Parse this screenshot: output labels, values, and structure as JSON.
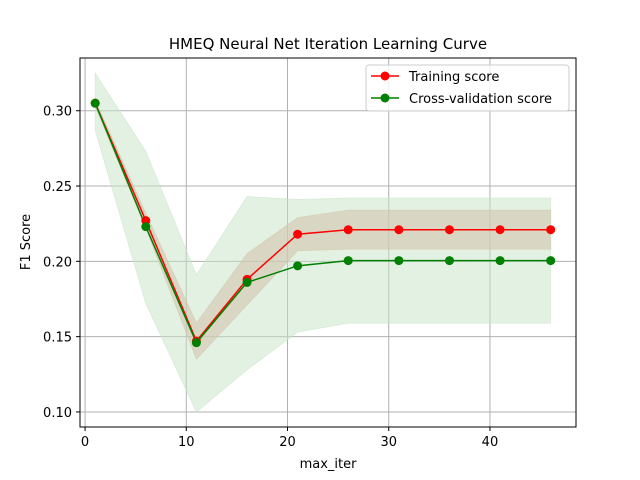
{
  "chart_data": {
    "type": "line",
    "title": "HMEQ Neural Net Iteration Learning Curve",
    "xlabel": "max_iter",
    "ylabel": "F1 Score",
    "xlim": [
      -0.5,
      48.5
    ],
    "ylim": [
      0.09,
      0.335
    ],
    "xticks": [
      0,
      10,
      20,
      30,
      40
    ],
    "yticks": [
      0.1,
      0.15,
      0.2,
      0.25,
      0.3
    ],
    "xtick_labels": [
      "0",
      "10",
      "20",
      "30",
      "40"
    ],
    "ytick_labels": [
      "0.10",
      "0.15",
      "0.20",
      "0.25",
      "0.30"
    ],
    "grid": true,
    "legend_position": "top-right",
    "x": [
      1,
      6,
      11,
      16,
      21,
      26,
      31,
      36,
      41,
      46
    ],
    "series": [
      {
        "name": "Training score",
        "color": "#ff0000",
        "marker": "circle",
        "values": [
          0.305,
          0.227,
          0.147,
          0.188,
          0.218,
          0.221,
          0.221,
          0.221,
          0.221,
          0.221
        ],
        "band_lower": [
          0.303,
          0.222,
          0.135,
          0.171,
          0.207,
          0.208,
          0.208,
          0.208,
          0.208,
          0.208
        ],
        "band_upper": [
          0.307,
          0.232,
          0.159,
          0.205,
          0.229,
          0.234,
          0.234,
          0.234,
          0.234,
          0.234
        ],
        "band_color": "#d9a08a"
      },
      {
        "name": "Cross-validation score",
        "color": "#008000",
        "marker": "circle",
        "values": [
          0.305,
          0.223,
          0.146,
          0.186,
          0.197,
          0.2005,
          0.2005,
          0.2005,
          0.2005,
          0.2005
        ],
        "band_lower": [
          0.287,
          0.172,
          0.1,
          0.128,
          0.153,
          0.159,
          0.159,
          0.159,
          0.159,
          0.159
        ],
        "band_upper": [
          0.325,
          0.273,
          0.191,
          0.243,
          0.241,
          0.242,
          0.242,
          0.242,
          0.242,
          0.242
        ],
        "band_color": "#c8e3c8"
      }
    ]
  },
  "colors": {
    "grid": "#b0b0b0",
    "axis": "#000000",
    "legend_border": "#cccccc"
  }
}
